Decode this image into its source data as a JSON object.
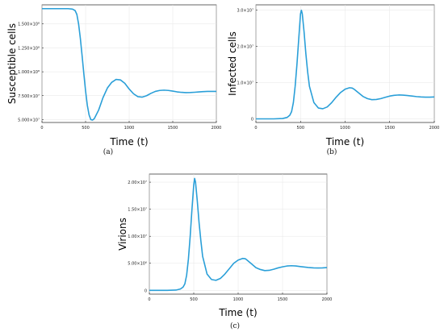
{
  "chart_data": [
    {
      "panel": "a",
      "type": "line",
      "caption": "(a)",
      "ylabel": "Susceptible cells",
      "xlabel": "Time (t)",
      "xlim": [
        0,
        2000
      ],
      "ylim": [
        47000000.0,
        170000000.0
      ],
      "xticks": [
        0,
        500,
        1000,
        1500,
        2000
      ],
      "xtick_labels": [
        "0",
        "500",
        "1000",
        "1500",
        "2000"
      ],
      "yticks": [
        50000000.0,
        75000000.0,
        100000000.0,
        125000000.0,
        150000000.0
      ],
      "ytick_labels": [
        "5.000×10⁷",
        "7.500×10⁷",
        "1.000×10⁸",
        "1.250×10⁸",
        "1.500×10⁸"
      ],
      "grid": true,
      "color": "#2a9fd8",
      "series": [
        {
          "x": [
            0,
            100,
            200,
            300,
            350,
            380,
            400,
            420,
            440,
            460,
            480,
            500,
            520,
            540,
            560,
            580,
            600,
            650,
            700,
            750,
            800,
            850,
            900,
            950,
            1000,
            1050,
            1100,
            1150,
            1200,
            1250,
            1300,
            1350,
            1400,
            1450,
            1500,
            1550,
            1600,
            1650,
            1700,
            1750,
            1800,
            1850,
            1900,
            1950,
            2000
          ],
          "y": [
            166000000.0,
            166000000.0,
            166000000.0,
            166000000.0,
            165500000.0,
            164000000.0,
            160000000.0,
            150000000.0,
            135000000.0,
            117000000.0,
            98000000.0,
            80000000.0,
            65000000.0,
            55000000.0,
            50000000.0,
            49500000.0,
            51000000.0,
            60000000.0,
            73000000.0,
            83000000.0,
            89000000.0,
            92000000.0,
            91500000.0,
            88000000.0,
            82000000.0,
            77000000.0,
            74000000.0,
            73500000.0,
            75000000.0,
            77500000.0,
            79500000.0,
            80500000.0,
            80800000.0,
            80500000.0,
            79800000.0,
            79000000.0,
            78500000.0,
            78200000.0,
            78300000.0,
            78600000.0,
            79000000.0,
            79300000.0,
            79500000.0,
            79500000.0,
            79500000.0
          ]
        }
      ]
    },
    {
      "panel": "b",
      "type": "line",
      "caption": "(b)",
      "ylabel": "Infected cells",
      "xlabel": "Time (t)",
      "xlim": [
        0,
        2000
      ],
      "ylim": [
        -1000000.0,
        31500000.0
      ],
      "xticks": [
        0,
        500,
        1000,
        1500,
        2000
      ],
      "xtick_labels": [
        "0",
        "500",
        "1000",
        "1500",
        "2000"
      ],
      "yticks": [
        0,
        10000000.0,
        20000000.0,
        30000000.0
      ],
      "ytick_labels": [
        "0",
        "1.0×10⁷",
        "2.0×10⁷",
        "3.0×10⁷"
      ],
      "grid": true,
      "color": "#2a9fd8",
      "series": [
        {
          "x": [
            0,
            100,
            200,
            300,
            350,
            380,
            400,
            420,
            440,
            460,
            480,
            500,
            510,
            520,
            540,
            560,
            580,
            600,
            650,
            700,
            750,
            800,
            850,
            900,
            950,
            1000,
            1050,
            1080,
            1100,
            1150,
            1200,
            1250,
            1300,
            1350,
            1400,
            1450,
            1500,
            1550,
            1600,
            1650,
            1700,
            1750,
            1800,
            1850,
            1900,
            1950,
            2000
          ],
          "y": [
            0,
            0,
            0,
            100000.0,
            400000.0,
            1000000.0,
            2000000.0,
            4500000.0,
            9000000.0,
            15000000.0,
            22000000.0,
            29000000.0,
            30000000.0,
            29000000.0,
            24000000.0,
            18000000.0,
            13000000.0,
            9000000.0,
            4500000.0,
            3000000.0,
            2800000.0,
            3300000.0,
            4500000.0,
            6000000.0,
            7300000.0,
            8200000.0,
            8600000.0,
            8500000.0,
            8200000.0,
            7200000.0,
            6200000.0,
            5600000.0,
            5300000.0,
            5350000.0,
            5600000.0,
            5950000.0,
            6300000.0,
            6500000.0,
            6600000.0,
            6550000.0,
            6450000.0,
            6300000.0,
            6150000.0,
            6050000.0,
            6000000.0,
            6000000.0,
            6050000.0
          ]
        }
      ]
    },
    {
      "panel": "c",
      "type": "line",
      "caption": "(c)",
      "ylabel": "Virions",
      "xlabel": "Time (t)",
      "xlim": [
        0,
        2000
      ],
      "ylim": [
        -700000.0,
        21500000.0
      ],
      "xticks": [
        0,
        500,
        1000,
        1500,
        2000
      ],
      "xtick_labels": [
        "0",
        "500",
        "1000",
        "1500",
        "2000"
      ],
      "yticks": [
        0,
        5000000.0,
        10000000.0,
        15000000.0,
        20000000.0
      ],
      "ytick_labels": [
        "0",
        "5.00×10⁶",
        "1.00×10⁷",
        "1.50×10⁷",
        "2.00×10⁷"
      ],
      "grid": true,
      "color": "#2a9fd8",
      "series": [
        {
          "x": [
            0,
            100,
            200,
            300,
            350,
            380,
            400,
            420,
            440,
            460,
            480,
            500,
            510,
            520,
            540,
            560,
            580,
            600,
            650,
            700,
            750,
            800,
            850,
            900,
            950,
            1000,
            1050,
            1080,
            1100,
            1150,
            1200,
            1250,
            1300,
            1350,
            1400,
            1450,
            1500,
            1550,
            1600,
            1650,
            1700,
            1750,
            1800,
            1850,
            1900,
            1950,
            2000
          ],
          "y": [
            0,
            0,
            0,
            50000.0,
            250000.0,
            600000.0,
            1200000.0,
            2800000.0,
            5800000.0,
            10000000.0,
            15000000.0,
            19500000.0,
            20700000.0,
            20000000.0,
            16500000.0,
            12500000.0,
            9200000.0,
            6300000.0,
            3000000.0,
            2000000.0,
            1850000.0,
            2200000.0,
            3000000.0,
            4000000.0,
            5000000.0,
            5600000.0,
            5900000.0,
            5850000.0,
            5600000.0,
            4900000.0,
            4200000.0,
            3850000.0,
            3650000.0,
            3700000.0,
            3900000.0,
            4150000.0,
            4350000.0,
            4500000.0,
            4550000.0,
            4500000.0,
            4400000.0,
            4300000.0,
            4200000.0,
            4150000.0,
            4130000.0,
            4150000.0,
            4200000.0
          ]
        }
      ]
    }
  ]
}
